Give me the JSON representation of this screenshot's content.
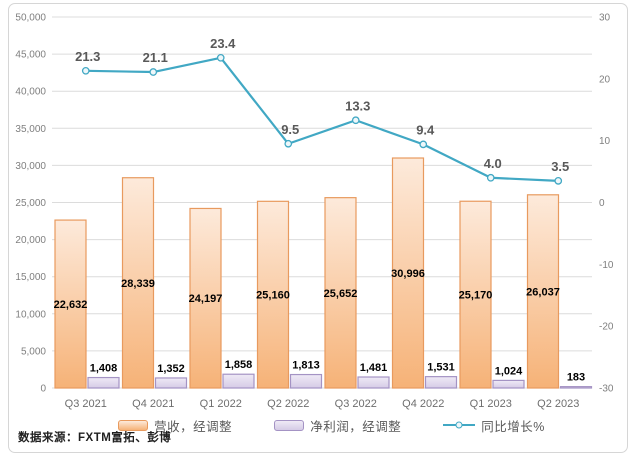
{
  "source_note": "数据来源：FXTM富拓、彭博",
  "chart_data": {
    "type": "bar",
    "title": "",
    "xlabel": "",
    "ylabel": "",
    "grid": true,
    "legend_position": "bottom",
    "categories": [
      "Q3 2021",
      "Q4 2021",
      "Q1 2022",
      "Q2 2022",
      "Q3 2022",
      "Q4 2022",
      "Q1 2023",
      "Q2 2023"
    ],
    "series": [
      {
        "name": "营收，经调整",
        "type": "bar",
        "axis": "left",
        "values": [
          22632,
          28339,
          24197,
          25160,
          25652,
          30996,
          25170,
          26037
        ],
        "fill_top": "#fdeadb",
        "fill_bottom": "#f6b277",
        "border": "#e89a5e"
      },
      {
        "name": "净利润，经调整",
        "type": "bar",
        "axis": "left",
        "values": [
          1408,
          1352,
          1858,
          1813,
          1481,
          1531,
          1024,
          183
        ],
        "fill_top": "#efeaf6",
        "fill_bottom": "#d5cbe6",
        "border": "#a493c4"
      },
      {
        "name": "同比增长%",
        "type": "line",
        "axis": "right",
        "values": [
          21.3,
          21.1,
          23.4,
          9.5,
          13.3,
          9.4,
          4.0,
          3.5
        ],
        "color": "#41a8c4",
        "marker_fill": "#eef7fa",
        "label_color": "#595959"
      }
    ],
    "left_axis": {
      "min": 0,
      "max": 50000,
      "step": 5000
    },
    "right_axis": {
      "min": -30,
      "max": 30,
      "step": 10
    },
    "colors": {
      "gridline": "#dcdcdc",
      "tick_label": "#7f7f7f",
      "category_label": "#6e6e6e",
      "bar_label": "#000000"
    }
  }
}
